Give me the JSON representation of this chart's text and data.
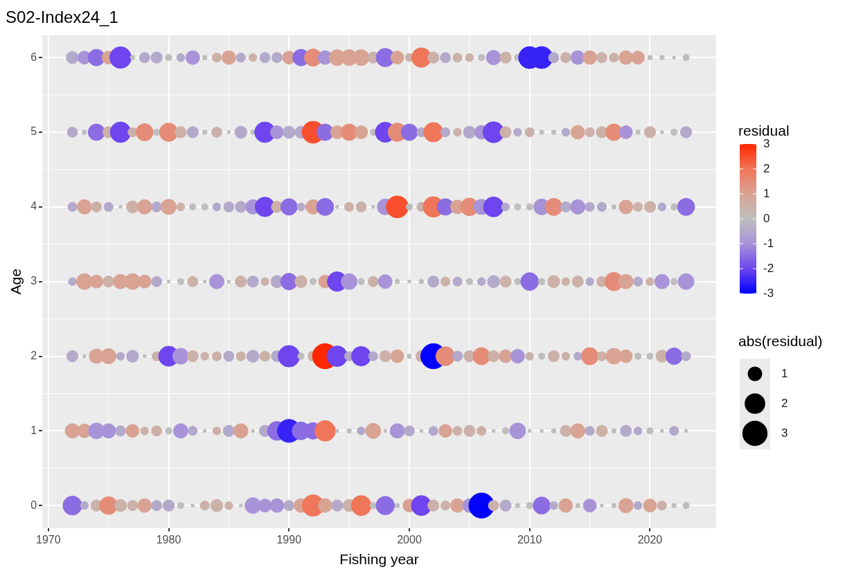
{
  "chart_data": {
    "type": "bubble",
    "title": "S02-Index24_1",
    "xlabel": "Fishing year",
    "ylabel": "Age",
    "clabel": "residual",
    "legend_title": "abs(residual)",
    "grid": true,
    "x": [
      1972,
      1973,
      1974,
      1975,
      1976,
      1977,
      1978,
      1979,
      1980,
      1981,
      1982,
      1983,
      1984,
      1985,
      1986,
      1987,
      1988,
      1989,
      1990,
      1991,
      1992,
      1993,
      1994,
      1995,
      1996,
      1997,
      1998,
      1999,
      2000,
      2001,
      2002,
      2003,
      2004,
      2005,
      2006,
      2007,
      2008,
      2009,
      2010,
      2011,
      2012,
      2013,
      2014,
      2015,
      2016,
      2017,
      2018,
      2019,
      2020,
      2021,
      2022,
      2023
    ],
    "xlim": [
      1969.5,
      2025.5
    ],
    "xticks": [
      1970,
      1980,
      1990,
      2000,
      2010,
      2020
    ],
    "ylim": [
      -0.3,
      6.3
    ],
    "yticks": [
      0,
      1,
      2,
      3,
      4,
      5,
      6
    ],
    "clim": [
      -3,
      3
    ],
    "cticks": [
      -3,
      -2,
      -1,
      0,
      1,
      2,
      3
    ],
    "size_legend": [
      1,
      2,
      3
    ],
    "series": [
      {
        "values": [
          0,
          0,
          0,
          0,
          0,
          0,
          0,
          0,
          0,
          0,
          0,
          0,
          0,
          0,
          0,
          0,
          0,
          0,
          0,
          0,
          0,
          0,
          0,
          0,
          0,
          0,
          0,
          0,
          0,
          0,
          0,
          0,
          0,
          0,
          0,
          0,
          0,
          0,
          0,
          0,
          0,
          0,
          0,
          0,
          0,
          0,
          0,
          0,
          0,
          0,
          0,
          0
        ],
        "cvalues": [
          -1.5,
          -0.5,
          0.5,
          1.5,
          0.5,
          0.5,
          1,
          -0.5,
          -0.5,
          0,
          0,
          0.5,
          0.5,
          0.5,
          0,
          -1,
          -1,
          -1,
          -0.5,
          1,
          2,
          1,
          -0.5,
          0.5,
          2,
          0,
          -1.5,
          0,
          1,
          -2,
          0.5,
          0.5,
          1,
          -1,
          -3,
          0.5,
          -0.5,
          0,
          0,
          -1.5,
          -0.5,
          1,
          0,
          -1,
          0,
          0,
          1,
          -0.5,
          1,
          0.5,
          0,
          0
        ],
        "sizes": [
          1.7,
          0.3,
          0.6,
          1.5,
          0.7,
          0.5,
          0.9,
          0.5,
          0.6,
          0.2,
          0.05,
          0.4,
          0.7,
          0.3,
          0.05,
          1.2,
          0.8,
          0.9,
          0.5,
          0.9,
          2.2,
          0.9,
          0.6,
          0.7,
          1.9,
          0.2,
          1.6,
          0.1,
          0.8,
          1.9,
          0.6,
          0.4,
          0.9,
          0.9,
          3.0,
          0.5,
          0.6,
          0.1,
          0.2,
          1.4,
          0.3,
          0.9,
          0.1,
          0.8,
          0.05,
          0.1,
          1.0,
          0.3,
          0.8,
          0.4,
          0.1,
          0.2
        ],
        "colors": [
          "#8b6ce3",
          "#b3a9cb",
          "#ccb1a9",
          "#e48c77",
          "#ccb1a9",
          "#ccb1a9",
          "#d9a394",
          "#b3a9cb",
          "#b3a9cb",
          "#bebebe",
          "#bebebe",
          "#ccb1a9",
          "#ccb1a9",
          "#ccb1a9",
          "#bebebe",
          "#a893d8",
          "#a893d8",
          "#a893d8",
          "#b3a9cb",
          "#d9a394",
          "#f0765a",
          "#d9a394",
          "#b3a9cb",
          "#ccb1a9",
          "#f0765a",
          "#bebebe",
          "#8b6ce3",
          "#bebebe",
          "#d9a394",
          "#6e45ee",
          "#ccb1a9",
          "#ccb1a9",
          "#d9a394",
          "#a893d8",
          "#0000ff",
          "#ccb1a9",
          "#b3a9cb",
          "#bebebe",
          "#bebebe",
          "#8b6ce3",
          "#b3a9cb",
          "#d9a394",
          "#bebebe",
          "#a893d8",
          "#bebebe",
          "#bebebe",
          "#d9a394",
          "#b3a9cb",
          "#d9a394",
          "#ccb1a9",
          "#bebebe",
          "#bebebe"
        ]
      },
      {
        "values": [
          1,
          1,
          1,
          1,
          1,
          1,
          1,
          1,
          1,
          1,
          1,
          1,
          1,
          1,
          1,
          1,
          1,
          1,
          1,
          1,
          1,
          1,
          1,
          1,
          1,
          1,
          1,
          1,
          1,
          1,
          1,
          1,
          1,
          1,
          1,
          1,
          1,
          1,
          1,
          1,
          1,
          1,
          1,
          1,
          1,
          1,
          1,
          1,
          1,
          1,
          1,
          1
        ],
        "cvalues": [
          1,
          1,
          -1,
          -1,
          -0.5,
          1,
          0.5,
          0.5,
          0,
          -1,
          -0.5,
          0,
          0.5,
          -0.5,
          1,
          0,
          -0.5,
          -1.5,
          -2.5,
          -1.5,
          -1.5,
          2,
          0,
          0,
          -0.5,
          1,
          0,
          -1,
          -0.5,
          0,
          -0.5,
          1,
          0.5,
          0.5,
          0.5,
          0,
          0,
          -1,
          0,
          0,
          0,
          0.5,
          1,
          -0.5,
          0.5,
          0,
          -0.5,
          -0.5,
          0,
          0,
          -0.5,
          0
        ],
        "sizes": [
          1.0,
          0.9,
          1.2,
          1.0,
          0.5,
          0.8,
          0.3,
          0.5,
          0.2,
          1.0,
          0.4,
          0.05,
          0.3,
          0.6,
          1.0,
          0.05,
          0.6,
          1.7,
          2.5,
          1.5,
          1.3,
          2.0,
          0.05,
          0.1,
          0.3,
          1.1,
          0.05,
          1.0,
          0.5,
          0.05,
          0.4,
          0.8,
          0.4,
          0.6,
          0.4,
          0.05,
          0.2,
          1.2,
          0.05,
          0.05,
          0.1,
          0.6,
          1.0,
          0.4,
          0.6,
          0.1,
          0.6,
          0.3,
          0.2,
          0.05,
          0.4,
          0.05
        ],
        "colors": [
          "#d9a394",
          "#d9a394",
          "#a893d8",
          "#a893d8",
          "#b3a9cb",
          "#d9a394",
          "#ccb1a9",
          "#ccb1a9",
          "#bebebe",
          "#a893d8",
          "#b3a9cb",
          "#bebebe",
          "#ccb1a9",
          "#b3a9cb",
          "#d9a394",
          "#bebebe",
          "#b3a9cb",
          "#8b6ce3",
          "#3723f7",
          "#8b6ce3",
          "#8b6ce3",
          "#f0765a",
          "#bebebe",
          "#bebebe",
          "#b3a9cb",
          "#d9a394",
          "#bebebe",
          "#a893d8",
          "#b3a9cb",
          "#bebebe",
          "#b3a9cb",
          "#d9a394",
          "#ccb1a9",
          "#ccb1a9",
          "#ccb1a9",
          "#bebebe",
          "#bebebe",
          "#a893d8",
          "#bebebe",
          "#bebebe",
          "#bebebe",
          "#ccb1a9",
          "#d9a394",
          "#b3a9cb",
          "#ccb1a9",
          "#bebebe",
          "#b3a9cb",
          "#b3a9cb",
          "#bebebe",
          "#bebebe",
          "#b3a9cb",
          "#bebebe"
        ]
      },
      {
        "values": [
          2,
          2,
          2,
          2,
          2,
          2,
          2,
          2,
          2,
          2,
          2,
          2,
          2,
          2,
          2,
          2,
          2,
          2,
          2,
          2,
          2,
          2,
          2,
          2,
          2,
          2,
          2,
          2,
          2,
          2,
          2,
          2,
          2,
          2,
          2,
          2,
          2,
          2,
          2,
          2,
          2,
          2,
          2,
          2,
          2,
          2,
          2,
          2,
          2,
          2,
          2,
          2
        ],
        "cvalues": [
          -0.5,
          0,
          1,
          1,
          -0.5,
          -0.5,
          0,
          0.5,
          -2,
          -1,
          0.5,
          0.5,
          0.5,
          -0.5,
          0.5,
          -0.5,
          0.5,
          -0.5,
          -2,
          0,
          0.5,
          3,
          -2,
          -0.5,
          -2,
          -0.5,
          0.5,
          1,
          0,
          0.5,
          -3,
          1.5,
          -0.5,
          0.5,
          1.5,
          0.5,
          1,
          -1,
          0.5,
          0,
          0.5,
          0.5,
          -0.5,
          1.5,
          0.5,
          1,
          1,
          0,
          0,
          0.5,
          -1.5,
          -0.5
        ],
        "sizes": [
          0.6,
          0.05,
          1.0,
          1.1,
          0.3,
          0.7,
          0.05,
          0.4,
          1.9,
          1.2,
          0.6,
          0.3,
          0.4,
          0.5,
          0.4,
          0.7,
          0.5,
          0.6,
          2.2,
          0.2,
          0.5,
          3.0,
          2.0,
          0.4,
          1.8,
          0.4,
          0.6,
          0.8,
          0.1,
          0.6,
          3.0,
          1.7,
          0.5,
          0.6,
          1.4,
          0.6,
          0.8,
          0.9,
          0.3,
          0.2,
          0.6,
          0.3,
          0.3,
          1.4,
          0.4,
          1.2,
          0.8,
          0.2,
          0.2,
          0.7,
          1.3,
          0.4
        ],
        "colors": [
          "#b3a9cb",
          "#bebebe",
          "#d9a394",
          "#d9a394",
          "#b3a9cb",
          "#b3a9cb",
          "#bebebe",
          "#ccb1a9",
          "#6e45ee",
          "#a893d8",
          "#ccb1a9",
          "#ccb1a9",
          "#ccb1a9",
          "#b3a9cb",
          "#ccb1a9",
          "#b3a9cb",
          "#ccb1a9",
          "#b3a9cb",
          "#6e45ee",
          "#bebebe",
          "#ccb1a9",
          "#ff2600",
          "#6e45ee",
          "#b3a9cb",
          "#6e45ee",
          "#b3a9cb",
          "#ccb1a9",
          "#d9a394",
          "#bebebe",
          "#ccb1a9",
          "#0000ff",
          "#e48c77",
          "#b3a9cb",
          "#ccb1a9",
          "#e48c77",
          "#ccb1a9",
          "#d9a394",
          "#a893d8",
          "#ccb1a9",
          "#bebebe",
          "#ccb1a9",
          "#ccb1a9",
          "#b3a9cb",
          "#e48c77",
          "#ccb1a9",
          "#d9a394",
          "#d9a394",
          "#bebebe",
          "#bebebe",
          "#ccb1a9",
          "#8b6ce3",
          "#b3a9cb"
        ]
      },
      {
        "values": [
          3,
          3,
          3,
          3,
          3,
          3,
          3,
          3,
          3,
          3,
          3,
          3,
          3,
          3,
          3,
          3,
          3,
          3,
          3,
          3,
          3,
          3,
          3,
          3,
          3,
          3,
          3,
          3,
          3,
          3,
          3,
          3,
          3,
          3,
          3,
          3,
          3,
          3,
          3,
          3,
          3,
          3,
          3,
          3,
          3,
          3,
          3,
          3,
          3,
          3,
          3,
          3
        ],
        "cvalues": [
          -0.5,
          1,
          1,
          0.5,
          1,
          1,
          1,
          -0.5,
          0,
          0,
          0.5,
          0,
          -1,
          0,
          0.5,
          -0.5,
          0.5,
          -0.5,
          -1.5,
          0.5,
          0,
          1,
          -2,
          -1,
          0,
          0.5,
          -1,
          0,
          0,
          0,
          -0.5,
          0.5,
          -0.5,
          0,
          -0.5,
          -0.5,
          0.5,
          0,
          -1.5,
          0,
          0.5,
          0.5,
          0.5,
          -0.5,
          0.5,
          1.5,
          1,
          -0.5,
          0.5,
          -1,
          0,
          -1
        ],
        "sizes": [
          0.3,
          1.2,
          0.8,
          0.6,
          1.0,
          1.2,
          0.8,
          0.5,
          0.05,
          0.2,
          0.5,
          0.05,
          1.0,
          0.05,
          0.6,
          0.6,
          0.3,
          0.7,
          1.3,
          0.7,
          0.2,
          0.8,
          1.8,
          1.2,
          0.2,
          0.5,
          0.9,
          0.1,
          0.05,
          0.1,
          0.6,
          0.4,
          0.4,
          0.2,
          0.3,
          0.7,
          0.6,
          0.2,
          1.5,
          0.2,
          0.7,
          0.3,
          0.6,
          0.3,
          0.5,
          1.6,
          1.0,
          0.4,
          0.3,
          1.0,
          0.2,
          1.2
        ],
        "colors": [
          "#b3a9cb",
          "#d9a394",
          "#d9a394",
          "#ccb1a9",
          "#d9a394",
          "#d9a394",
          "#d9a394",
          "#b3a9cb",
          "#bebebe",
          "#bebebe",
          "#ccb1a9",
          "#bebebe",
          "#a893d8",
          "#bebebe",
          "#ccb1a9",
          "#b3a9cb",
          "#ccb1a9",
          "#b3a9cb",
          "#8b6ce3",
          "#ccb1a9",
          "#bebebe",
          "#d9a394",
          "#6e45ee",
          "#a893d8",
          "#bebebe",
          "#ccb1a9",
          "#a893d8",
          "#bebebe",
          "#bebebe",
          "#bebebe",
          "#b3a9cb",
          "#ccb1a9",
          "#b3a9cb",
          "#bebebe",
          "#b3a9cb",
          "#b3a9cb",
          "#ccb1a9",
          "#bebebe",
          "#8b6ce3",
          "#bebebe",
          "#ccb1a9",
          "#ccb1a9",
          "#ccb1a9",
          "#b3a9cb",
          "#ccb1a9",
          "#e48c77",
          "#d9a394",
          "#b3a9cb",
          "#ccb1a9",
          "#a893d8",
          "#bebebe",
          "#a893d8"
        ]
      },
      {
        "values": [
          4,
          4,
          4,
          4,
          4,
          4,
          4,
          4,
          4,
          4,
          4,
          4,
          4,
          4,
          4,
          4,
          4,
          4,
          4,
          4,
          4,
          4,
          4,
          4,
          4,
          4,
          4,
          4,
          4,
          4,
          4,
          4,
          4,
          4,
          4,
          4,
          4,
          4,
          4,
          4,
          4,
          4,
          4,
          4,
          4,
          4,
          4,
          4,
          4,
          4,
          4,
          4
        ],
        "cvalues": [
          -0.5,
          1,
          0.5,
          -0.5,
          0,
          0.5,
          1,
          -0.5,
          1,
          0.5,
          0,
          0,
          -0.5,
          -0.5,
          -0.5,
          -1,
          -2,
          0.5,
          -1.5,
          -0.5,
          1,
          -1.5,
          0,
          0.5,
          0.5,
          0,
          -1,
          2.5,
          0,
          0.5,
          2,
          -1.5,
          1,
          1.5,
          -1,
          -2,
          -0.5,
          0,
          0,
          -1,
          1.5,
          -0.5,
          -1,
          -0.5,
          -0.5,
          0,
          1,
          0.5,
          0.5,
          -0.5,
          0,
          -1.5
        ],
        "sizes": [
          0.4,
          1.0,
          0.5,
          0.4,
          0.05,
          0.7,
          1.0,
          0.5,
          1.1,
          0.3,
          0.2,
          0.2,
          0.3,
          0.5,
          0.6,
          1.0,
          1.8,
          0.6,
          1.3,
          0.3,
          1.0,
          1.4,
          0.05,
          0.4,
          0.5,
          0.05,
          1.2,
          2.3,
          0.2,
          0.4,
          2.0,
          1.3,
          0.9,
          1.5,
          1.1,
          1.9,
          0.3,
          0.2,
          0.2,
          1.2,
          1.4,
          0.5,
          1.0,
          0.4,
          0.4,
          0.1,
          0.9,
          0.4,
          0.6,
          0.3,
          0.2,
          1.4
        ],
        "colors": [
          "#b3a9cb",
          "#d9a394",
          "#ccb1a9",
          "#b3a9cb",
          "#bebebe",
          "#ccb1a9",
          "#d9a394",
          "#b3a9cb",
          "#d9a394",
          "#ccb1a9",
          "#bebebe",
          "#bebebe",
          "#b3a9cb",
          "#b3a9cb",
          "#b3a9cb",
          "#a893d8",
          "#6e45ee",
          "#ccb1a9",
          "#8b6ce3",
          "#b3a9cb",
          "#d9a394",
          "#8b6ce3",
          "#bebebe",
          "#ccb1a9",
          "#ccb1a9",
          "#bebebe",
          "#a893d8",
          "#f84e2d",
          "#bebebe",
          "#ccb1a9",
          "#f0765a",
          "#8b6ce3",
          "#d9a394",
          "#e48c77",
          "#a893d8",
          "#6e45ee",
          "#b3a9cb",
          "#bebebe",
          "#bebebe",
          "#a893d8",
          "#e48c77",
          "#b3a9cb",
          "#a893d8",
          "#b3a9cb",
          "#b3a9cb",
          "#bebebe",
          "#d9a394",
          "#ccb1a9",
          "#ccb1a9",
          "#b3a9cb",
          "#bebebe",
          "#8b6ce3"
        ]
      },
      {
        "values": [
          5,
          5,
          5,
          5,
          5,
          5,
          5,
          5,
          5,
          5,
          5,
          5,
          5,
          5,
          5,
          5,
          5,
          5,
          5,
          5,
          5,
          5,
          5,
          5,
          5,
          5,
          5,
          5,
          5,
          5,
          5,
          5,
          5,
          5,
          5,
          5,
          5,
          5,
          5,
          5,
          5,
          5,
          5,
          5,
          5,
          5,
          5,
          5,
          5,
          5,
          5,
          5
        ],
        "cvalues": [
          -0.5,
          0,
          -1.5,
          0.5,
          -2,
          0.5,
          1.5,
          0,
          1.5,
          0.5,
          -0.5,
          0,
          0.5,
          0,
          -0.5,
          0,
          -2,
          -1,
          -0.5,
          -0.5,
          2.5,
          -1.5,
          1,
          1.5,
          1,
          0,
          -2,
          1.5,
          -1.5,
          -0.5,
          2,
          -0.5,
          0.5,
          -0.5,
          -1,
          -2,
          0.5,
          -0.5,
          0.5,
          0,
          0,
          -0.5,
          1,
          0.5,
          0.5,
          1.5,
          -1,
          0,
          0.5,
          0,
          0,
          -0.5
        ],
        "sizes": [
          0.5,
          0.1,
          1.3,
          0.6,
          2.0,
          0.4,
          1.4,
          0.2,
          1.6,
          0.6,
          0.6,
          0.1,
          0.5,
          0.05,
          0.7,
          0.1,
          2.0,
          0.8,
          0.7,
          0.7,
          2.3,
          1.3,
          0.8,
          1.3,
          0.8,
          0.2,
          1.9,
          1.6,
          1.3,
          0.4,
          1.8,
          0.4,
          0.3,
          0.7,
          0.9,
          2.1,
          0.6,
          0.3,
          0.4,
          0.1,
          0.1,
          0.3,
          0.9,
          0.4,
          0.6,
          1.3,
          0.8,
          0.1,
          0.6,
          0.05,
          0.2,
          0.6
        ],
        "colors": [
          "#b3a9cb",
          "#bebebe",
          "#8b6ce3",
          "#ccb1a9",
          "#6e45ee",
          "#ccb1a9",
          "#e48c77",
          "#bebebe",
          "#e48c77",
          "#ccb1a9",
          "#b3a9cb",
          "#bebebe",
          "#ccb1a9",
          "#bebebe",
          "#b3a9cb",
          "#bebebe",
          "#6e45ee",
          "#a893d8",
          "#b3a9cb",
          "#b3a9cb",
          "#f84e2d",
          "#8b6ce3",
          "#d9a394",
          "#e48c77",
          "#d9a394",
          "#bebebe",
          "#6e45ee",
          "#e48c77",
          "#8b6ce3",
          "#b3a9cb",
          "#f0765a",
          "#b3a9cb",
          "#ccb1a9",
          "#b3a9cb",
          "#a893d8",
          "#6e45ee",
          "#ccb1a9",
          "#b3a9cb",
          "#ccb1a9",
          "#bebebe",
          "#bebebe",
          "#b3a9cb",
          "#d9a394",
          "#ccb1a9",
          "#ccb1a9",
          "#e48c77",
          "#a893d8",
          "#bebebe",
          "#ccb1a9",
          "#bebebe",
          "#bebebe",
          "#b3a9cb"
        ]
      },
      {
        "values": [
          6,
          6,
          6,
          6,
          6,
          6,
          6,
          6,
          6,
          6,
          6,
          6,
          6,
          6,
          6,
          6,
          6,
          6,
          6,
          6,
          6,
          6,
          6,
          6,
          6,
          6,
          6,
          6,
          6,
          6,
          6,
          6,
          6,
          6,
          6,
          6,
          6,
          6,
          6,
          6,
          6,
          6,
          6,
          6,
          6,
          6,
          6,
          6,
          6,
          6,
          6,
          6
        ],
        "cvalues": [
          -0.5,
          -1,
          -1.5,
          1,
          -2,
          0,
          -0.5,
          -0.5,
          0,
          -0.5,
          -1,
          0,
          0.5,
          1,
          -0.5,
          0.5,
          -0.5,
          -0.5,
          1,
          -1.5,
          1.5,
          -1,
          1,
          1,
          1,
          0.5,
          -1.5,
          1,
          0.5,
          2,
          0.5,
          -0.5,
          0.5,
          0.5,
          0,
          -1,
          0.5,
          0,
          -2.5,
          -2.5,
          -0.5,
          0.5,
          -1,
          1,
          0.5,
          0.5,
          1,
          1,
          0,
          0,
          0,
          0
        ],
        "sizes": [
          0.7,
          0.8,
          1.3,
          0.8,
          2.2,
          0.1,
          0.5,
          0.6,
          0.2,
          0.3,
          0.9,
          0.1,
          0.4,
          0.9,
          0.4,
          0.3,
          0.5,
          0.5,
          0.8,
          1.3,
          1.4,
          0.9,
          1.2,
          1.2,
          1.2,
          0.6,
          1.6,
          0.8,
          0.3,
          1.8,
          0.6,
          0.5,
          0.4,
          0.3,
          0.2,
          1.0,
          0.6,
          0.2,
          2.3,
          2.3,
          0.5,
          0.5,
          0.9,
          0.9,
          0.5,
          0.4,
          0.9,
          0.8,
          0.1,
          0.1,
          0.05,
          0.2
        ],
        "colors": [
          "#b3a9cb",
          "#a893d8",
          "#8b6ce3",
          "#d9a394",
          "#6e45ee",
          "#bebebe",
          "#b3a9cb",
          "#b3a9cb",
          "#bebebe",
          "#b3a9cb",
          "#a893d8",
          "#bebebe",
          "#ccb1a9",
          "#d9a394",
          "#b3a9cb",
          "#ccb1a9",
          "#b3a9cb",
          "#b3a9cb",
          "#d9a394",
          "#8b6ce3",
          "#e48c77",
          "#a893d8",
          "#d9a394",
          "#d9a394",
          "#d9a394",
          "#ccb1a9",
          "#8b6ce3",
          "#d9a394",
          "#ccb1a9",
          "#f0765a",
          "#ccb1a9",
          "#b3a9cb",
          "#ccb1a9",
          "#ccb1a9",
          "#bebebe",
          "#a893d8",
          "#ccb1a9",
          "#bebebe",
          "#3723f7",
          "#3723f7",
          "#b3a9cb",
          "#ccb1a9",
          "#a893d8",
          "#d9a394",
          "#ccb1a9",
          "#ccb1a9",
          "#d9a394",
          "#d9a394",
          "#bebebe",
          "#bebebe",
          "#bebebe",
          "#bebebe"
        ]
      }
    ]
  }
}
